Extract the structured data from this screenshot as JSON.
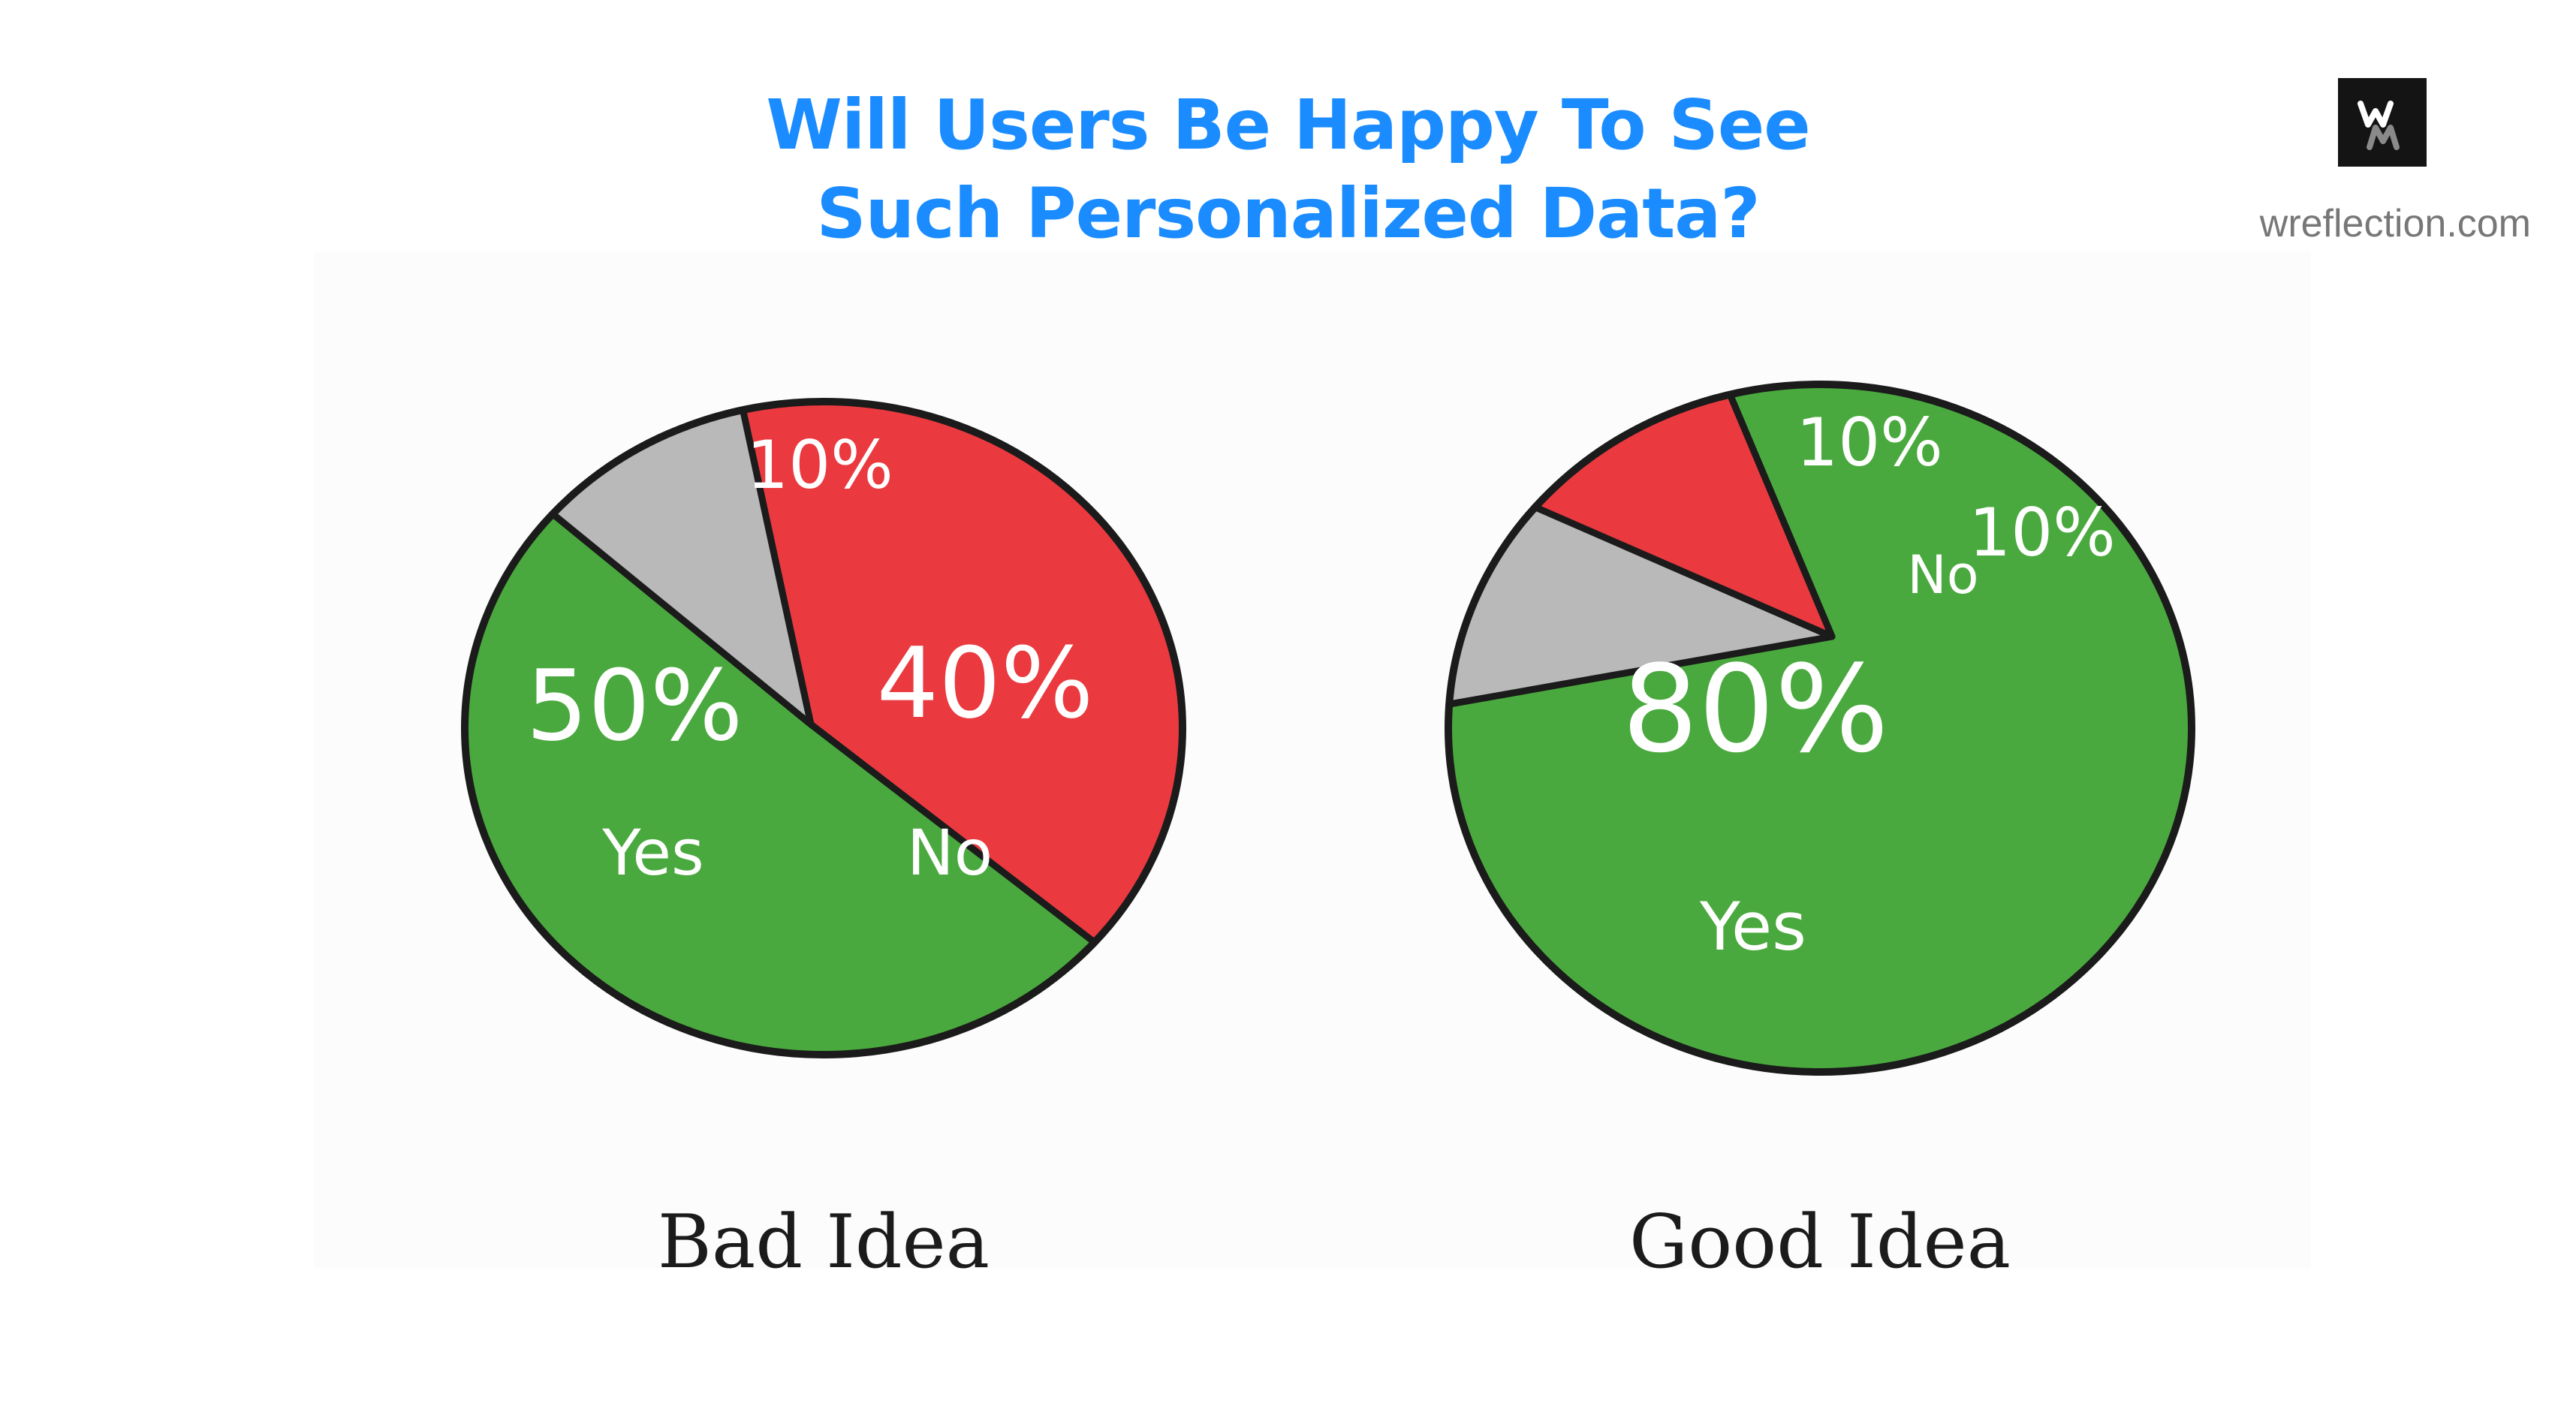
{
  "title": {
    "line1": "Will Users Be Happy To See",
    "line2": "Such Personalized Data?"
  },
  "brand": {
    "logo_text": "WM",
    "site": "wreflection.com"
  },
  "colors": {
    "title": "#1a8cff",
    "yes": "#4aa93e",
    "no": "#ea3a40",
    "neutral": "#b9b9b9",
    "outline": "#1b1b1b"
  },
  "chart_data": [
    {
      "type": "pie",
      "title": "Bad Idea",
      "slices": [
        {
          "label": "Yes",
          "value": 50,
          "value_label": "50%",
          "color": "#4aa93e"
        },
        {
          "label": "No",
          "value": 40,
          "value_label": "40%",
          "color": "#ea3a40"
        },
        {
          "label": "",
          "value": 10,
          "value_label": "10%",
          "color": "#b9b9b9"
        }
      ]
    },
    {
      "type": "pie",
      "title": "Good Idea",
      "slices": [
        {
          "label": "Yes",
          "value": 80,
          "value_label": "80%",
          "color": "#4aa93e"
        },
        {
          "label": "No",
          "value": 10,
          "value_label": "10%",
          "color": "#ea3a40"
        },
        {
          "label": "",
          "value": 10,
          "value_label": "10%",
          "color": "#b9b9b9"
        }
      ]
    }
  ]
}
